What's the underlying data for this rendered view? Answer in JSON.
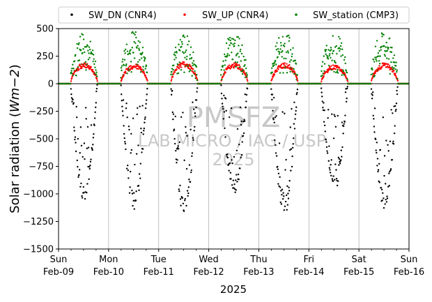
{
  "chart_data": {
    "type": "scatter",
    "title": "",
    "xlabel": "2025",
    "ylabel": "Solar radiation (Wm−2)",
    "ylabel_parts": [
      "Solar radiation (",
      "Wm",
      "−2",
      ")"
    ],
    "ylim": [
      -1500,
      500
    ],
    "xlim": [
      0,
      7
    ],
    "yticks": [
      500,
      250,
      0,
      -250,
      -500,
      -750,
      -1000,
      -1250,
      -1500
    ],
    "ytick_labels": [
      "500",
      "250",
      "0",
      "−250",
      "−500",
      "−750",
      "−1000",
      "−1250",
      "−1500"
    ],
    "xticks": [
      {
        "pos": 0,
        "day": "Sun",
        "date": "Feb-09"
      },
      {
        "pos": 1,
        "day": "Mon",
        "date": "Feb-10"
      },
      {
        "pos": 2,
        "day": "Tue",
        "date": "Feb-11"
      },
      {
        "pos": 3,
        "day": "Wed",
        "date": "Feb-12"
      },
      {
        "pos": 4,
        "day": "Thu",
        "date": "Feb-13"
      },
      {
        "pos": 5,
        "day": "Fri",
        "date": "Feb-14"
      },
      {
        "pos": 6,
        "day": "Sat",
        "date": "Feb-15"
      },
      {
        "pos": 7,
        "day": "Sun",
        "date": "Feb-16"
      }
    ],
    "grid": "vertical",
    "legend_placement": "top",
    "watermark": [
      "PMSFZ",
      "LAB MICRO / IAG / USP",
      "2025"
    ],
    "series": [
      {
        "name": "SW_DN (CNR4)",
        "color": "#000000",
        "marker": "•",
        "description": "daily negative-signed downwelling shortwave, peaks about -1050 to -1200 near local noon"
      },
      {
        "name": "SW_UP (CNR4)",
        "color": "#ff0000",
        "marker": "•",
        "description": "upwelling shortwave, peaks about 170 to 200 near local noon"
      },
      {
        "name": "SW_station (CMP3)",
        "color": "#008000",
        "marker": "•",
        "description": "station global radiation, scattered values up to about 480"
      }
    ],
    "daily_peaks": [
      {
        "day": "Feb-09",
        "sw_dn": -1080,
        "sw_up": 190,
        "sw_station": 460
      },
      {
        "day": "Feb-10",
        "sw_dn": -1160,
        "sw_up": 180,
        "sw_station": 480
      },
      {
        "day": "Feb-11",
        "sw_dn": -1200,
        "sw_up": 200,
        "sw_station": 460
      },
      {
        "day": "Feb-12",
        "sw_dn": -1030,
        "sw_up": 190,
        "sw_station": 480
      },
      {
        "day": "Feb-13",
        "sw_dn": -1200,
        "sw_up": 190,
        "sw_station": 470
      },
      {
        "day": "Feb-14",
        "sw_dn": -1000,
        "sw_up": 170,
        "sw_station": 460
      },
      {
        "day": "Feb-15",
        "sw_dn": -1140,
        "sw_up": 190,
        "sw_station": 480
      }
    ]
  }
}
